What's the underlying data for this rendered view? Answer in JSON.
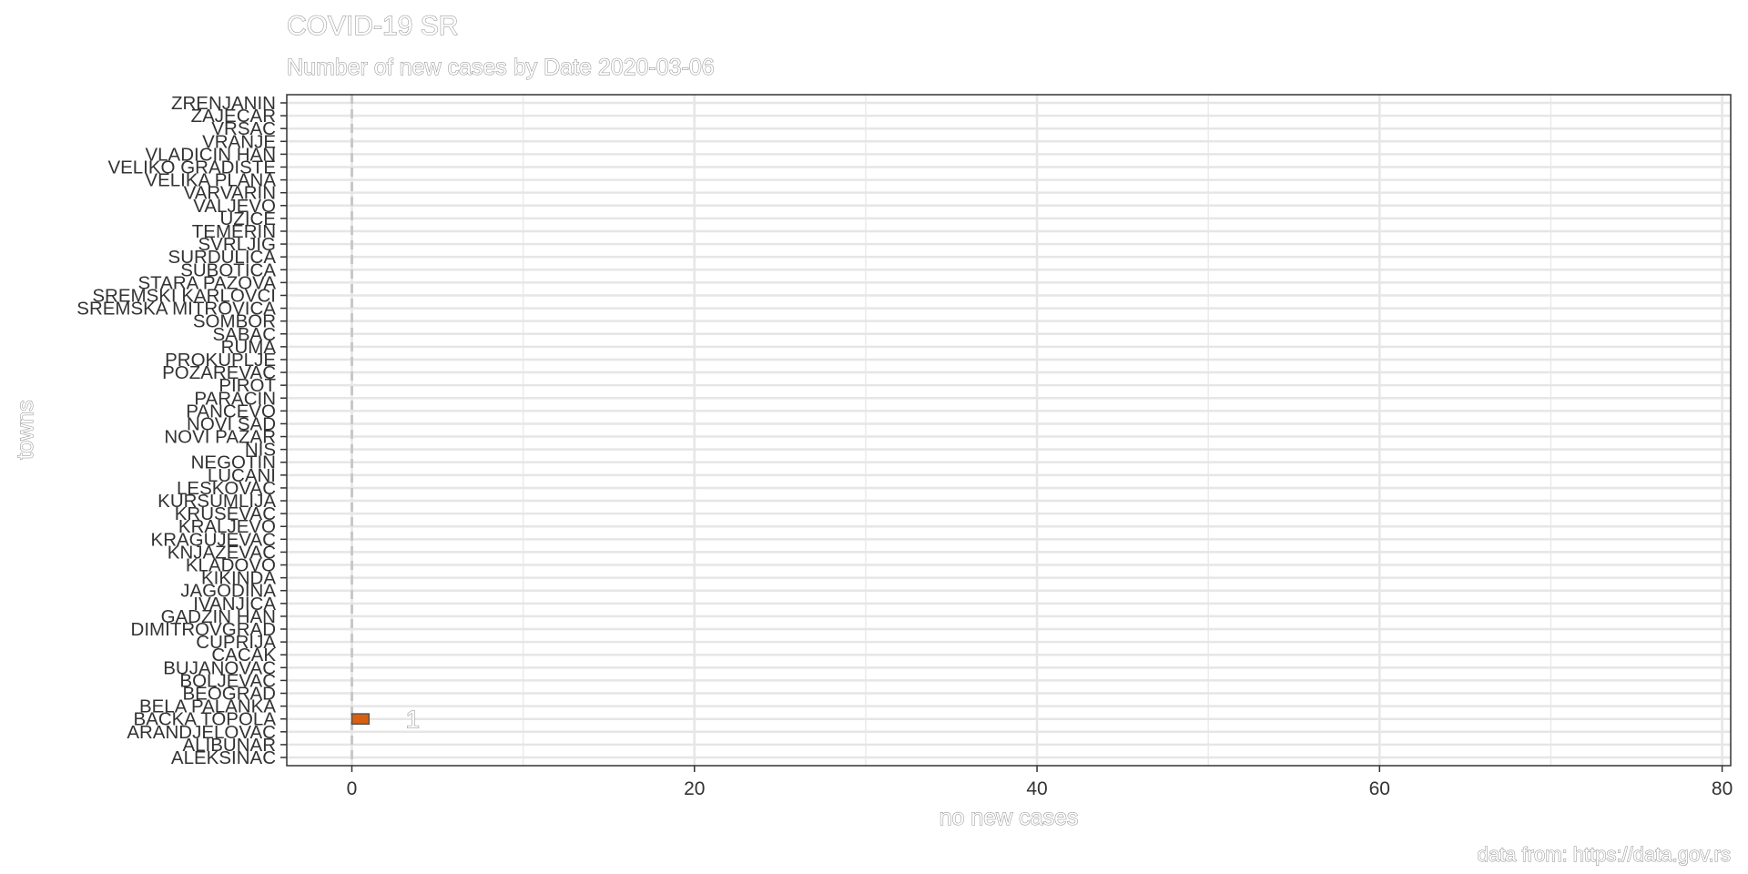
{
  "chart_data": {
    "type": "bar",
    "orientation": "horizontal",
    "title": "COVID-19 SR",
    "subtitle": "Number of new cases by Date 2020-03-06",
    "xlabel": "no new cases",
    "ylabel": "towns",
    "caption": "data from: https://data.gov.rs",
    "xlim": [
      -3.8,
      80.5
    ],
    "x_ticks": [
      0,
      20,
      40,
      60,
      80
    ],
    "grid": true,
    "bar_color": "#d95f0e",
    "categories": [
      "ALEKSINAC",
      "ALIBUNAR",
      "ARANDJELOVAC",
      "BACKA TOPOLA",
      "BELA PALANKA",
      "BEOGRAD",
      "BOLJEVAC",
      "BUJANOVAC",
      "CACAK",
      "CUPRIJA",
      "DIMITROVGRAD",
      "GADZIN HAN",
      "IVANJICA",
      "JAGODINA",
      "KIKINDA",
      "KLADOVO",
      "KNJAZEVAC",
      "KRAGUJEVAC",
      "KRALJEVO",
      "KRUSEVAC",
      "KURSUMLIJA",
      "LESKOVAC",
      "LUCANI",
      "NEGOTIN",
      "NIS",
      "NOVI PAZAR",
      "NOVI SAD",
      "PANCEVO",
      "PARACIN",
      "PIROT",
      "POZAREVAC",
      "PROKUPLJE",
      "RUMA",
      "SABAC",
      "SOMBOR",
      "SREMSKA MITROVICA",
      "SREMSKI KARLOVCI",
      "STARA PAZOVA",
      "SUBOTICA",
      "SURDULICA",
      "SVRLJIG",
      "TEMERIN",
      "UZICE",
      "VALJEVO",
      "VARVARIN",
      "VELIKA PLANA",
      "VELIKO GRADISTE",
      "VLADICIN HAN",
      "VRANJE",
      "VRSAC",
      "ZAJECAR",
      "ZRENJANIN"
    ],
    "values": [
      0,
      0,
      0,
      1,
      0,
      0,
      0,
      0,
      0,
      0,
      0,
      0,
      0,
      0,
      0,
      0,
      0,
      0,
      0,
      0,
      0,
      0,
      0,
      0,
      0,
      0,
      0,
      0,
      0,
      0,
      0,
      0,
      0,
      0,
      0,
      0,
      0,
      0,
      0,
      0,
      0,
      0,
      0,
      0,
      0,
      0,
      0,
      0,
      0,
      0,
      0,
      0
    ]
  }
}
